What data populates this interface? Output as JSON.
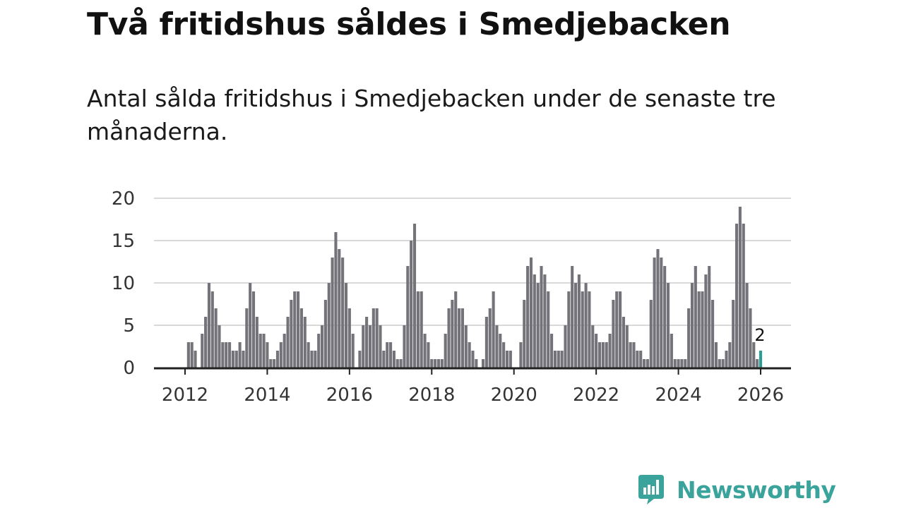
{
  "title": "Två fritidshus såldes i Smedjebacken",
  "subtitle": "Antal sålda fritidshus i Smedjebacken under de senaste tre månaderna.",
  "brand": {
    "name": "Newsworthy",
    "color": "#3aa39b"
  },
  "colors": {
    "bar": "#75737a",
    "highlight": "#2a9d96",
    "grid": "#d9d9d9",
    "axis": "#222222"
  },
  "chart_data": {
    "type": "bar",
    "title": "",
    "xlabel": "",
    "ylabel": "",
    "ylim": [
      0,
      20
    ],
    "yticks": [
      0,
      5,
      10,
      15,
      20
    ],
    "xticks": [
      "2012",
      "2014",
      "2016",
      "2018",
      "2020",
      "2022",
      "2024",
      "2026"
    ],
    "x_start": "2012-01",
    "x_interval": "month",
    "grid": true,
    "highlight_last": true,
    "last_label": "2",
    "values": [
      3,
      3,
      2,
      0,
      4,
      6,
      10,
      9,
      7,
      5,
      3,
      3,
      3,
      2,
      2,
      3,
      2,
      7,
      10,
      9,
      6,
      4,
      4,
      3,
      1,
      1,
      2,
      3,
      4,
      6,
      8,
      9,
      9,
      7,
      6,
      3,
      2,
      2,
      4,
      5,
      8,
      10,
      13,
      16,
      14,
      13,
      10,
      7,
      4,
      0,
      2,
      5,
      6,
      5,
      7,
      7,
      5,
      2,
      3,
      3,
      2,
      1,
      1,
      5,
      12,
      15,
      17,
      9,
      9,
      4,
      3,
      1,
      1,
      1,
      1,
      4,
      7,
      8,
      9,
      7,
      7,
      5,
      3,
      2,
      1,
      0,
      1,
      6,
      7,
      9,
      5,
      4,
      3,
      2,
      2,
      0,
      0,
      3,
      8,
      12,
      13,
      11,
      10,
      12,
      11,
      9,
      4,
      2,
      2,
      2,
      5,
      9,
      12,
      10,
      11,
      9,
      10,
      9,
      5,
      4,
      3,
      3,
      3,
      4,
      8,
      9,
      9,
      6,
      5,
      3,
      3,
      2,
      2,
      1,
      1,
      8,
      13,
      14,
      13,
      12,
      10,
      4,
      1,
      1,
      1,
      1,
      7,
      10,
      12,
      9,
      9,
      11,
      12,
      8,
      3,
      1,
      1,
      2,
      3,
      8,
      17,
      19,
      17,
      10,
      7,
      3,
      1,
      2
    ]
  }
}
